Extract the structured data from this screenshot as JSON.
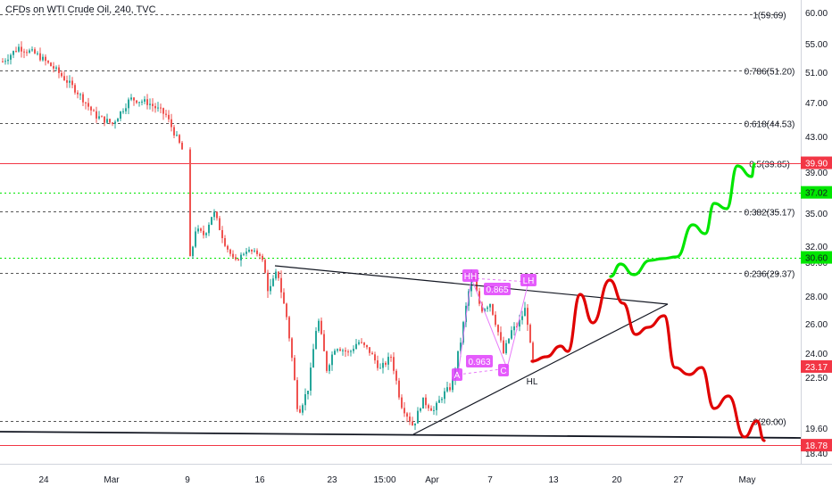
{
  "chart_data": {
    "type": "candlestick",
    "title": "CFDs on WTI Crude Oil, 240, TVC",
    "y_axis": {
      "position": "right",
      "ticks": [
        "60.00",
        "55.00",
        "51.00",
        "47.00",
        "43.00",
        "39.00",
        "35.00",
        "32.00",
        "30.00",
        "28.00",
        "26.00",
        "24.00",
        "22.50",
        "19.60",
        "18.40"
      ]
    },
    "x_axis": {
      "ticks": [
        "24",
        "Mar",
        "9",
        "16",
        "23",
        "15:00",
        "Apr",
        "7",
        "13",
        "20",
        "27",
        "May"
      ]
    },
    "price_labels": [
      {
        "text": "39.90",
        "value": 39.9,
        "color": "#f23645"
      },
      {
        "text": "37.02",
        "value": 37.02,
        "color": "#00e600"
      },
      {
        "text": "30.60",
        "value": 30.6,
        "color": "#00e600"
      },
      {
        "text": "23.17",
        "value": 23.17,
        "color": "#f23645"
      },
      {
        "text": "18.78",
        "value": 18.78,
        "color": "#f23645"
      }
    ],
    "fib_levels": [
      {
        "label": "1(59.69)",
        "value": 59.69
      },
      {
        "label": "0.786(51.20)",
        "value": 51.2
      },
      {
        "label": "0.618(44.53)",
        "value": 44.53
      },
      {
        "label": "0.5(39.85)",
        "value": 39.85
      },
      {
        "label": "0.382(35.17)",
        "value": 35.17
      },
      {
        "label": "0.236(29.37)",
        "value": 29.37
      },
      {
        "label": "0(20.00)",
        "value": 20.0
      }
    ],
    "pattern_labels": [
      {
        "text": "HH",
        "color": "#e040fb"
      },
      {
        "text": "0.865",
        "color": "#e040fb"
      },
      {
        "text": "LH",
        "color": "#e040fb"
      },
      {
        "text": "0.963",
        "color": "#e040fb"
      },
      {
        "text": "A",
        "color": "#e040fb"
      },
      {
        "text": "C",
        "color": "#e040fb"
      },
      {
        "text": "HL",
        "color": "#131722"
      }
    ],
    "projection_bullish": {
      "color": "#00e600",
      "target": 39.85
    },
    "projection_bearish": {
      "color": "#e00000",
      "target": 18.78
    },
    "colors": {
      "up": "#26a69a",
      "down": "#ef5350",
      "fib": "#555555"
    }
  }
}
